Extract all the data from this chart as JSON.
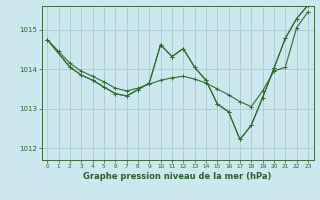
{
  "background_color": "#cce8ee",
  "grid_color": "#aacccc",
  "line_color": "#2d6e2d",
  "title": "Graphe pression niveau de la mer (hPa)",
  "xlim": [
    -0.5,
    23.5
  ],
  "ylim": [
    1011.7,
    1015.6
  ],
  "yticks": [
    1012,
    1013,
    1014,
    1015
  ],
  "xticks": [
    0,
    1,
    2,
    3,
    4,
    5,
    6,
    7,
    8,
    9,
    10,
    11,
    12,
    13,
    14,
    15,
    16,
    17,
    18,
    19,
    20,
    21,
    22,
    23
  ],
  "series": [
    {
      "x": [
        0,
        1,
        2,
        3,
        4,
        5,
        6,
        7,
        8,
        9,
        10,
        11,
        12,
        13,
        14,
        15,
        16,
        17,
        18,
        19,
        20,
        21,
        22,
        23
      ],
      "y": [
        1014.75,
        1014.45,
        1014.15,
        1013.95,
        1013.82,
        1013.68,
        1013.52,
        1013.45,
        1013.52,
        1013.62,
        1013.72,
        1013.78,
        1013.82,
        1013.75,
        1013.65,
        1013.5,
        1013.35,
        1013.18,
        1013.05,
        1013.45,
        1013.95,
        1014.05,
        1015.05,
        1015.45
      ]
    },
    {
      "x": [
        0,
        2,
        3,
        4,
        5,
        6,
        7,
        8,
        9,
        10,
        11,
        12,
        13,
        14,
        15,
        16,
        17,
        18,
        19,
        20,
        21,
        22,
        23
      ],
      "y": [
        1014.75,
        1014.05,
        1013.85,
        1013.72,
        1013.55,
        1013.38,
        1013.32,
        1013.48,
        1013.65,
        1014.62,
        1014.32,
        1014.52,
        1014.05,
        1013.72,
        1013.12,
        1012.92,
        1012.22,
        1012.58,
        1013.28,
        1014.02,
        1014.78,
        1015.28,
        1015.62
      ]
    },
    {
      "x": [
        0,
        2,
        3,
        4,
        5,
        6,
        7,
        8,
        9,
        10,
        11,
        12,
        13,
        14,
        15,
        16,
        17,
        18,
        19,
        20,
        21,
        22,
        23
      ],
      "y": [
        1014.75,
        1014.05,
        1013.85,
        1013.72,
        1013.55,
        1013.38,
        1013.32,
        1013.48,
        1013.65,
        1014.62,
        1014.32,
        1014.52,
        1014.05,
        1013.72,
        1013.12,
        1012.92,
        1012.22,
        1012.58,
        1013.28,
        1014.02,
        1014.78,
        1015.28,
        1015.62
      ]
    }
  ]
}
